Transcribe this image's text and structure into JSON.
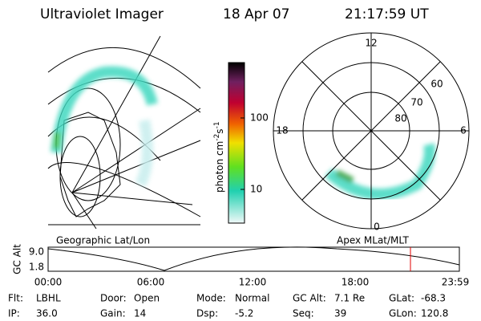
{
  "header": {
    "title": "Ultraviolet Imager",
    "date": "18 Apr 07",
    "time": "21:17:59 UT"
  },
  "colorbar": {
    "label": "photon cm",
    "exp1": "-2",
    "unit2": "s",
    "exp2": "-1",
    "ticks": [
      "100",
      "10"
    ]
  },
  "polar": {
    "mlt_labels": [
      "12",
      "18",
      "6",
      "0"
    ],
    "lat_labels": [
      "60",
      "70",
      "80"
    ]
  },
  "map_label": "Geographic Lat/Lon",
  "polar_label": "Apex MLat/MLT",
  "orbit": {
    "ylabel": "GC Alt",
    "yticks": [
      "9.0",
      "1.8"
    ],
    "xticks": [
      "00:00",
      "06:00",
      "12:00",
      "18:00",
      "23:59"
    ]
  },
  "footer": [
    [
      {
        "label": "Flt:",
        "value": "LBHL"
      },
      {
        "label": "Door:",
        "value": "Open"
      },
      {
        "label": "Mode:",
        "value": "Normal"
      },
      {
        "label": "GC Alt:",
        "value": "7.1 Re"
      },
      {
        "label": "GLat:",
        "value": "-68.3"
      }
    ],
    [
      {
        "label": "IP:",
        "value": "36.0"
      },
      {
        "label": "Gain:",
        "value": "14"
      },
      {
        "label": "Dsp:",
        "value": "-5.2"
      },
      {
        "label": "Seq:",
        "value": "39"
      },
      {
        "label": "GLon:",
        "value": "120.8"
      }
    ]
  ]
}
